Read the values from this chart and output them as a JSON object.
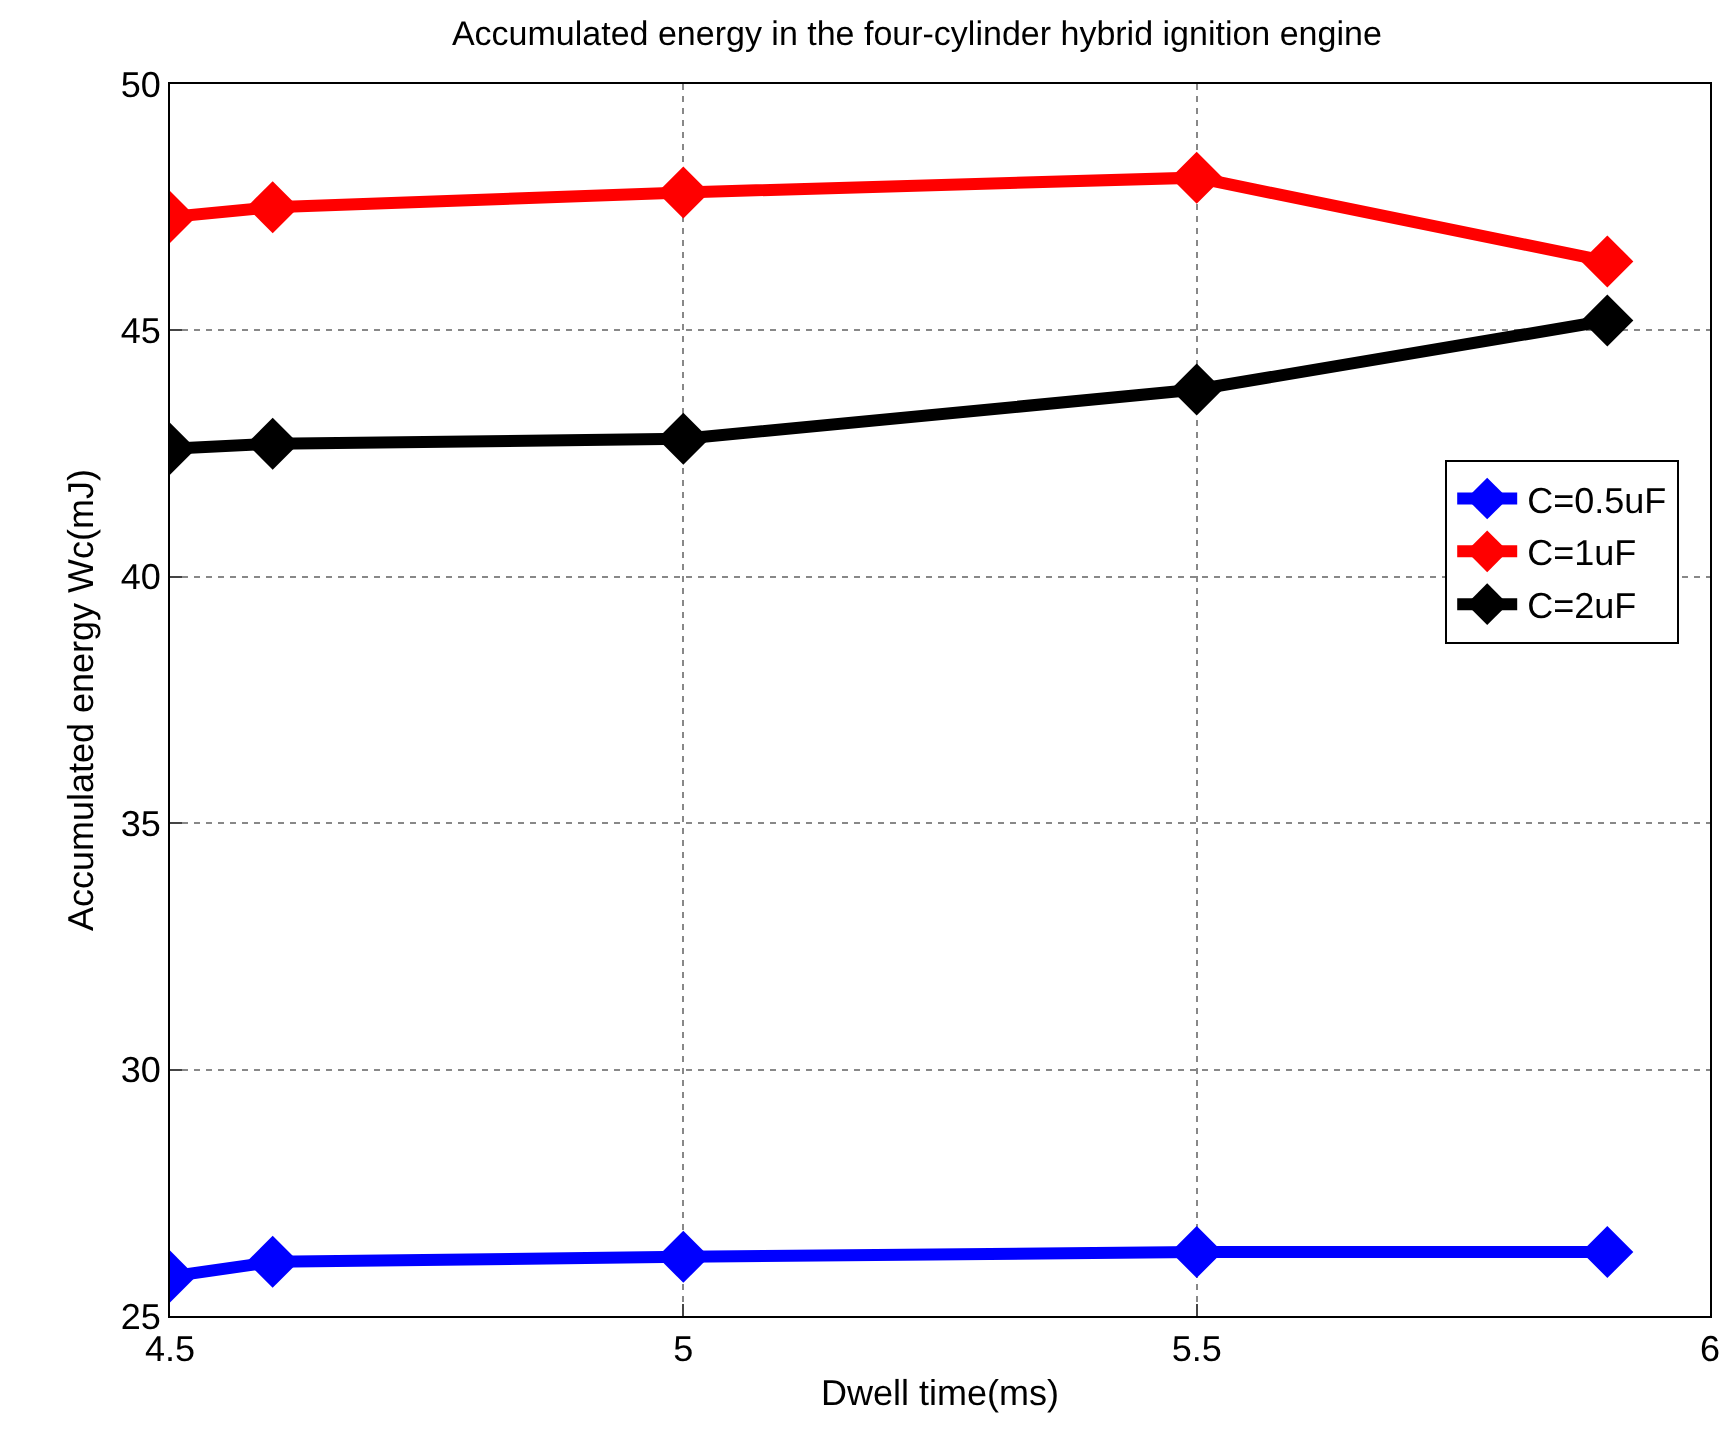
{
  "chart_data": {
    "type": "line",
    "title": "Accumulated energy in the four-cylinder hybrid ignition engine",
    "xlabel": "Dwell time(ms)",
    "ylabel": "Accumulated energy Wc(mJ)",
    "x": [
      4.5,
      4.6,
      5,
      5.5,
      5.9
    ],
    "series": [
      {
        "name": "C=0.5uF",
        "color": "#0000ff",
        "values": [
          25.8,
          26.1,
          26.2,
          26.3,
          26.3
        ]
      },
      {
        "name": "C=1uF",
        "color": "#ff0000",
        "values": [
          47.3,
          47.5,
          47.8,
          48.1,
          46.4
        ]
      },
      {
        "name": "C=2uF",
        "color": "#000000",
        "values": [
          42.6,
          42.7,
          42.8,
          43.8,
          45.2
        ]
      }
    ],
    "xlim": [
      4.5,
      6
    ],
    "xticks": [
      4.5,
      5,
      5.5,
      6
    ],
    "ylim": [
      25,
      50
    ],
    "yticks": [
      25,
      30,
      35,
      40,
      45,
      50
    ],
    "grid": true,
    "legend": "right",
    "marker": "diamond",
    "line_style": "solid"
  }
}
